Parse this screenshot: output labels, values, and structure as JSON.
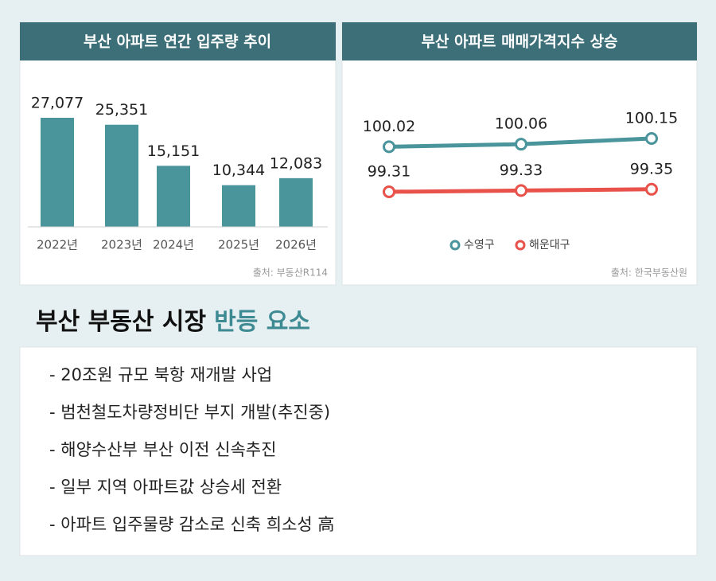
{
  "chart_data": [
    {
      "type": "bar",
      "title": "부산 아파트 연간 입주량 추이",
      "categories": [
        "2022년",
        "2023년",
        "2024년",
        "2025년",
        "2026년"
      ],
      "values": [
        27077,
        25351,
        15151,
        10344,
        12083
      ],
      "value_labels": [
        "27,077",
        "25,351",
        "15,151",
        "10,344",
        "12,083"
      ],
      "color": "#4a949c",
      "source": "출처: 부동산R114"
    },
    {
      "type": "line",
      "title": "부산 아파트 매매가격지수 상승",
      "categories": [
        null,
        null,
        null
      ],
      "series": [
        {
          "name": "수영구",
          "color": "#4a949c",
          "values": [
            100.02,
            100.06,
            100.15
          ]
        },
        {
          "name": "해운대구",
          "color": "#e8524a",
          "values": [
            99.31,
            99.33,
            99.35
          ]
        }
      ],
      "source": "출처: 한국부동산원"
    }
  ],
  "heading": {
    "text": "부산 부동산 시장",
    "highlight": "반등 요소"
  },
  "list": [
    "- 20조원 규모 북항 재개발 사업",
    "- 범천철도차량정비단 부지 개발(추진중)",
    "- 해양수산부 부산 이전 신속추진",
    "- 일부 지역 아파트값 상승세 전환",
    "- 아파트 입주물량 감소로 신축 희소성 高"
  ]
}
